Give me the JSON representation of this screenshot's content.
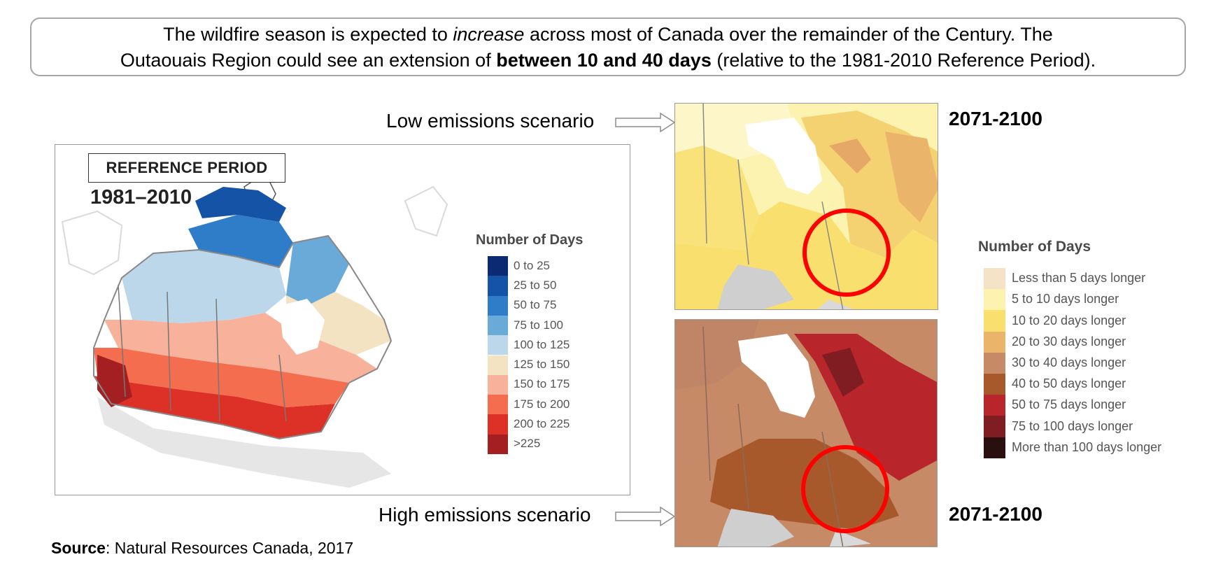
{
  "headline": {
    "line1_a": "The wildfire season is expected to ",
    "line1_em": "increase",
    "line1_b": " across most of Canada over the remainder of the Century. The",
    "line2_a": "Outaouais Region could see an extension of ",
    "line2_strong": "between 10 and 40 days",
    "line2_b": " (relative to the 1981-2010 Reference Period)."
  },
  "reference_map": {
    "label": "REFERENCE PERIOD",
    "years": "1981–2010",
    "legend_title": "Number of Days",
    "legend": [
      {
        "label": "0 to 25",
        "color": "#0c2a74"
      },
      {
        "label": "25 to 50",
        "color": "#1553a6"
      },
      {
        "label": "50 to 75",
        "color": "#2f7dc8"
      },
      {
        "label": "75 to 100",
        "color": "#6aaad9"
      },
      {
        "label": "100 to 125",
        "color": "#bcd7ea"
      },
      {
        "label": "125 to 150",
        "color": "#f3e3c3"
      },
      {
        "label": "150 to 175",
        "color": "#f8b19a"
      },
      {
        "label": "175 to 200",
        "color": "#f36d4e"
      },
      {
        "label": "200 to 225",
        "color": "#dd3128"
      },
      {
        "label": ">225",
        "color": "#a31f22"
      }
    ]
  },
  "scenarios": {
    "low": {
      "label": "Low emissions scenario",
      "years": "2071-2100"
    },
    "high": {
      "label": "High emissions scenario",
      "years": "2071-2100"
    }
  },
  "change_legend": {
    "title": "Number of Days",
    "items": [
      {
        "label": "Less than 5 days longer",
        "color": "#f4e3c6"
      },
      {
        "label": "5 to 10 days longer",
        "color": "#fcf3b0"
      },
      {
        "label": "10 to 20 days longer",
        "color": "#f9df6d"
      },
      {
        "label": "20 to 30 days longer",
        "color": "#eab56a"
      },
      {
        "label": "30 to 40 days longer",
        "color": "#c78a66"
      },
      {
        "label": "40 to 50 days longer",
        "color": "#a8592b"
      },
      {
        "label": "50 to 75 days longer",
        "color": "#b8252a"
      },
      {
        "label": "75 to 100 days longer",
        "color": "#7f1d22"
      },
      {
        "label": "More than 100 days longer",
        "color": "#2a0f0f"
      }
    ]
  },
  "source": {
    "label": "Source",
    "text": ": Natural Resources Canada, 2017"
  }
}
